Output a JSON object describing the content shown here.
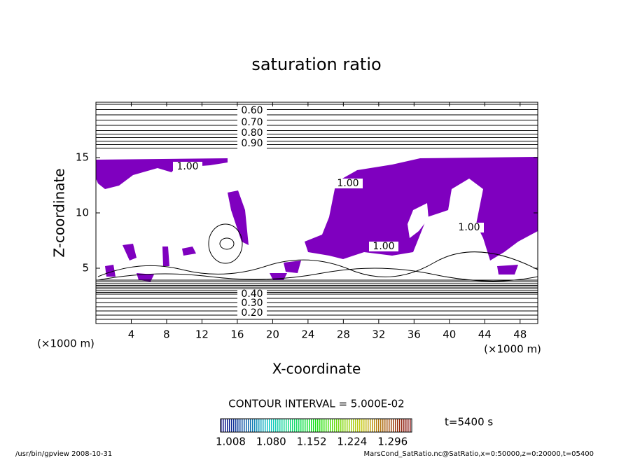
{
  "chart_data": {
    "type": "contour",
    "title": "saturation ratio",
    "x_label": "X-coordinate",
    "y_label": "Z-coordinate",
    "x_unit": "(×1000 m)",
    "y_unit": "(×1000 m)",
    "xlim": [
      0,
      50
    ],
    "xticks": [
      4,
      8,
      12,
      16,
      20,
      24,
      28,
      32,
      36,
      40,
      44,
      48
    ],
    "ylim": [
      0,
      20
    ],
    "yticks": [
      5,
      10,
      15
    ],
    "contour_labels": [
      "0.60",
      "0.70",
      "0.80",
      "0.90",
      "1.00",
      "1.00",
      "1.00",
      "1.00",
      "0.40",
      "0.30",
      "0.20"
    ],
    "fill_color": "#7f00bf",
    "contour_interval": "CONTOUR INTERVAL = 5.000E-02",
    "clim": [
      0.99,
      1.33
    ],
    "colorbar_ticks": [
      1.008,
      {
        "value": 1.08,
        "label": "1.080"
      },
      1.152,
      1.224,
      1.296
    ],
    "time_label": "t=5400 s",
    "footer_left": "/usr/bin/gpview  2008-10-31",
    "footer_right": "MarsCond_SatRatio.nc@SatRatio,x=0:50000,z=0:20000,t=05400"
  }
}
